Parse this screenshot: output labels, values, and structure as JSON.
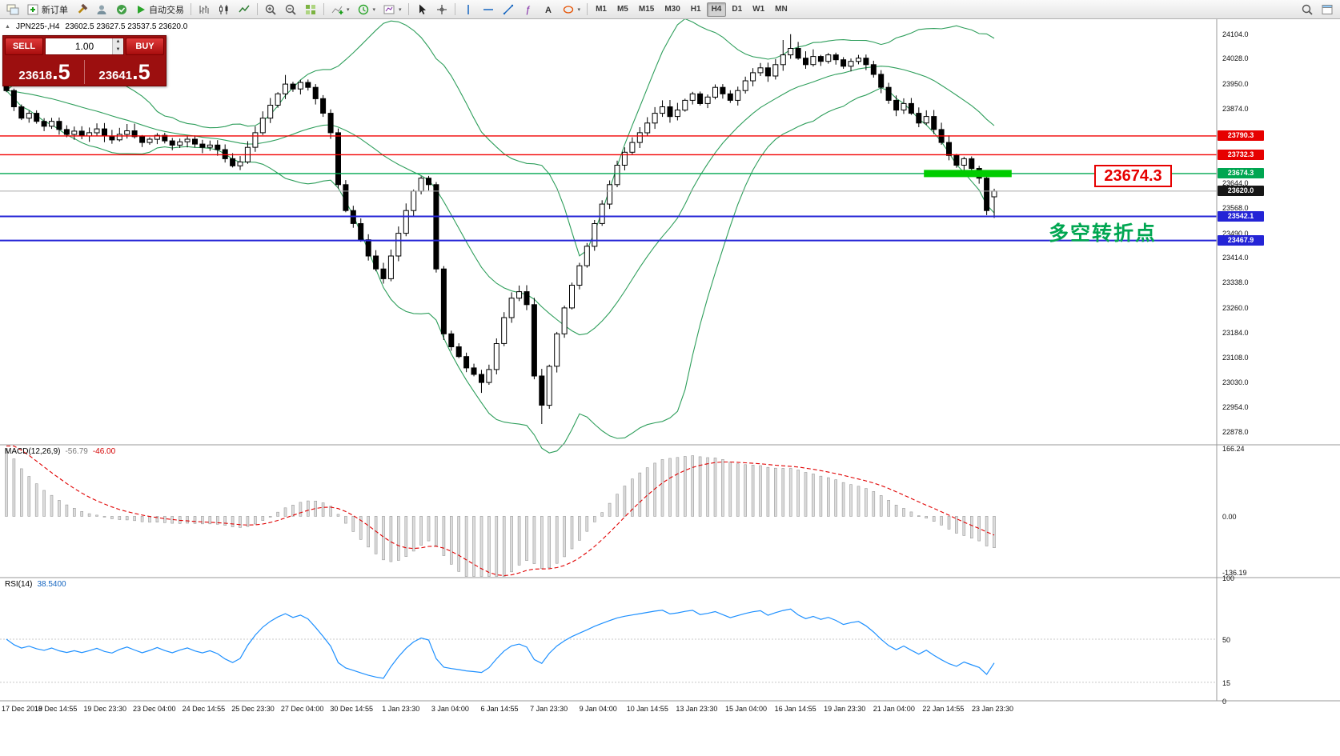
{
  "toolbar": {
    "new_order_label": "新订单",
    "autotrading_label": "自动交易",
    "timeframes": [
      "M1",
      "M5",
      "M15",
      "M30",
      "H1",
      "H4",
      "D1",
      "W1",
      "MN"
    ],
    "active_timeframe": "H4"
  },
  "symbol_info": {
    "title": "JPN225-,H4",
    "ohlc": "23602.5 23627.5 23537.5 23620.0"
  },
  "trade_widget": {
    "sell_label": "SELL",
    "buy_label": "BUY",
    "volume": "1.00",
    "sell_price": {
      "main": "23618",
      "pips": ".5"
    },
    "buy_price": {
      "main": "23641",
      "pips": ".5"
    }
  },
  "annotations": {
    "level_label": "23674.3",
    "pivot_label": "多空转折点"
  },
  "macd_panel": {
    "name": "MACD(12,26,9)",
    "value_main": "-56.79",
    "value_signal": "-46.00"
  },
  "rsi_panel": {
    "name": "RSI(14)",
    "value": "38.5400"
  },
  "chart_data": {
    "type": "candlestick",
    "symbol": "JPN225-",
    "timeframe": "H4",
    "current": {
      "open": 23602.5,
      "high": 23627.5,
      "low": 23537.5,
      "close": 23620.0,
      "bid": 23618.5,
      "ask": 23641.5
    },
    "price_axis_ticks": [
      24104.0,
      24028.0,
      23950.0,
      23874.0,
      23644.0,
      23568.0,
      23490.0,
      23414.0,
      23338.0,
      23260.0,
      23184.0,
      23108.0,
      23030.0,
      22954.0,
      22878.0
    ],
    "level_badges": [
      {
        "value": 23790.3,
        "color": "#e60000"
      },
      {
        "value": 23732.3,
        "color": "#e60000"
      },
      {
        "value": 23674.3,
        "color": "#00a651"
      },
      {
        "value": 23620.0,
        "color": "#161616"
      },
      {
        "value": 23542.1,
        "color": "#2424d6"
      },
      {
        "value": 23467.9,
        "color": "#2424d6"
      }
    ],
    "hlines": [
      {
        "value": 23790.3,
        "color": "#f20000",
        "width": 1.4
      },
      {
        "value": 23732.3,
        "color": "#f20000",
        "width": 1.4
      },
      {
        "value": 23674.3,
        "color": "#00a651",
        "width": 1.4
      },
      {
        "value": 23620.0,
        "color": "#ababab",
        "width": 1
      },
      {
        "value": 23542.1,
        "color": "#2424d6",
        "width": 2
      },
      {
        "value": 23467.9,
        "color": "#2424d6",
        "width": 2
      }
    ],
    "highlight_bar": {
      "value": 23674.3,
      "start_index": 122,
      "end_index": 133,
      "color": "#00cc00"
    },
    "candles": {
      "first_open": 23995,
      "closes": [
        23930,
        23880,
        23845,
        23860,
        23835,
        23820,
        23835,
        23810,
        23795,
        23805,
        23790,
        23800,
        23812,
        23790,
        23778,
        23795,
        23806,
        23788,
        23770,
        23780,
        23792,
        23775,
        23762,
        23772,
        23780,
        23765,
        23755,
        23762,
        23748,
        23720,
        23698,
        23710,
        23755,
        23800,
        23845,
        23885,
        23920,
        23950,
        23935,
        23955,
        23940,
        23905,
        23860,
        23800,
        23640,
        23560,
        23520,
        23470,
        23420,
        23380,
        23350,
        23420,
        23490,
        23560,
        23620,
        23660,
        23640,
        23380,
        23180,
        23140,
        23110,
        23075,
        23055,
        23030,
        23070,
        23150,
        23230,
        23290,
        23310,
        23270,
        23050,
        22960,
        23080,
        23180,
        23260,
        23330,
        23390,
        23450,
        23520,
        23580,
        23640,
        23700,
        23740,
        23770,
        23800,
        23830,
        23860,
        23880,
        23850,
        23870,
        23900,
        23920,
        23890,
        23910,
        23940,
        23920,
        23900,
        23930,
        23960,
        23985,
        24000,
        23975,
        24010,
        24040,
        24060,
        24030,
        24010,
        24035,
        24020,
        24040,
        24025,
        24005,
        24020,
        24030,
        24010,
        23980,
        23940,
        23900,
        23870,
        23890,
        23860,
        23830,
        23850,
        23810,
        23770,
        23730,
        23700,
        23720,
        23690,
        23660,
        23560,
        23620
      ],
      "overrides": {
        "37": {
          "high": 23978
        },
        "63": {
          "low": 22998
        },
        "71": {
          "low": 22902
        },
        "103": {
          "high": 24086
        },
        "104": {
          "high": 24104
        },
        "130": {
          "low": 23546
        },
        "131": {
          "open": 23602.5,
          "high": 23627.5,
          "low": 23537.5
        }
      }
    },
    "bollinger": {
      "period": 20,
      "deviation": 2,
      "color": "#2e9e5b"
    },
    "macd": {
      "fast": 12,
      "slow": 26,
      "signal": 9,
      "seed_ema12": 24060,
      "seed_ema26": 23870,
      "seed_signal": 185,
      "axis": [
        {
          "v": 166.24,
          "t": "166.24"
        },
        {
          "v": 0,
          "t": "0.00"
        },
        {
          "v": -136.19,
          "t": "-136.19"
        }
      ]
    },
    "rsi": {
      "period": 14,
      "color": "#1e90ff",
      "levels": [
        50,
        15
      ],
      "axis": [
        {
          "v": 100,
          "t": "100"
        },
        {
          "v": 50,
          "t": "50"
        },
        {
          "v": 15,
          "t": "15"
        },
        {
          "v": 0,
          "t": "0"
        }
      ]
    },
    "time_axis": [
      "17 Dec 2019",
      "18 Dec 14:55",
      "19 Dec 23:30",
      "23 Dec 04:00",
      "24 Dec 14:55",
      "25 Dec 23:30",
      "27 Dec 04:00",
      "30 Dec 14:55",
      "1 Jan 23:30",
      "3 Jan 04:00",
      "6 Jan 14:55",
      "7 Jan 23:30",
      "9 Jan 04:00",
      "10 Jan 14:55",
      "13 Jan 23:30",
      "15 Jan 04:00",
      "16 Jan 14:55",
      "19 Jan 23:30",
      "21 Jan 04:00",
      "22 Jan 14:55",
      "23 Jan 23:30"
    ]
  }
}
